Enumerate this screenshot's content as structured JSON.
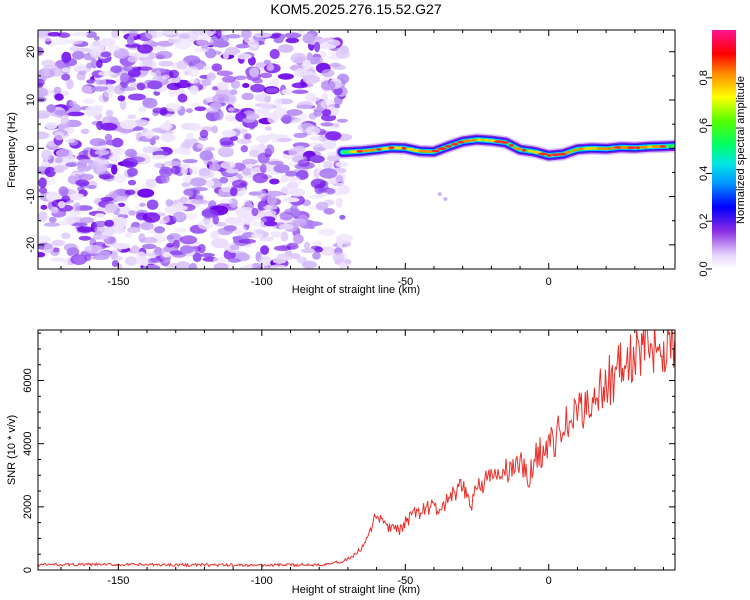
{
  "title": "KOM5.2025.276.15.52.G27",
  "colors": {
    "snr_line": "#e8312b",
    "ridge_purple": "#7b1cf0",
    "noise_light": "#d8c4f7",
    "axis": "#000000"
  },
  "chart_data": [
    {
      "type": "heatmap",
      "name": "spectrogram",
      "title": "KOM5.2025.276.15.52.G27",
      "xlabel": "Height of straight line (km)",
      "ylabel": "Frequency (Hz)",
      "xlim": [
        -178,
        44
      ],
      "ylim": [
        -25,
        24.5
      ],
      "xticks": [
        -150,
        -100,
        -50,
        0
      ],
      "yticks": [
        -20,
        -10,
        0,
        10,
        20
      ],
      "noise_region_x": [
        -178,
        -71
      ],
      "ridge": {
        "x": [
          -72,
          -65,
          -60,
          -55,
          -50,
          -45,
          -40,
          -35,
          -30,
          -25,
          -20,
          -15,
          -10,
          -5,
          0,
          5,
          10,
          15,
          20,
          25,
          30,
          35,
          40,
          44
        ],
        "freq_hz": [
          -0.8,
          -0.6,
          -0.3,
          0.1,
          0.0,
          -0.6,
          -0.7,
          0.4,
          1.4,
          1.8,
          1.6,
          1.2,
          -0.3,
          -0.7,
          -1.5,
          -1.2,
          -0.2,
          0.0,
          -0.1,
          0.2,
          0.1,
          0.3,
          0.4,
          0.5
        ]
      },
      "colorbar": {
        "label": "Normalized spectral amplitude",
        "ticks": [
          "0.0",
          "0.2",
          "0.4",
          "0.6",
          "0.8"
        ],
        "range": [
          0.0,
          1.0
        ]
      }
    },
    {
      "type": "line",
      "name": "snr",
      "xlabel": "Height of straight line (km)",
      "ylabel": "SNR (10 * v/v)",
      "xlim": [
        -178,
        44
      ],
      "ylim": [
        0,
        7600
      ],
      "xticks": [
        -150,
        -100,
        -50,
        0
      ],
      "yticks": [
        0,
        2000,
        4000,
        6000
      ],
      "series": [
        {
          "name": "SNR",
          "x": [
            -178,
            -150,
            -120,
            -100,
            -80,
            -72,
            -68,
            -65,
            -62,
            -60,
            -58,
            -55,
            -52,
            -50,
            -46,
            -42,
            -38,
            -35,
            -30,
            -27,
            -25,
            -20,
            -15,
            -10,
            -7,
            -5,
            0,
            5,
            10,
            15,
            20,
            25,
            30,
            35,
            40,
            44
          ],
          "values": [
            170,
            170,
            160,
            150,
            170,
            260,
            450,
            700,
            1200,
            1800,
            1500,
            1300,
            1250,
            1500,
            1800,
            2000,
            1900,
            2200,
            2600,
            2100,
            2700,
            2900,
            3100,
            3400,
            2800,
            3600,
            3900,
            4500,
            4900,
            5400,
            5900,
            6400,
            6800,
            7000,
            7200,
            7100
          ]
        }
      ]
    }
  ]
}
